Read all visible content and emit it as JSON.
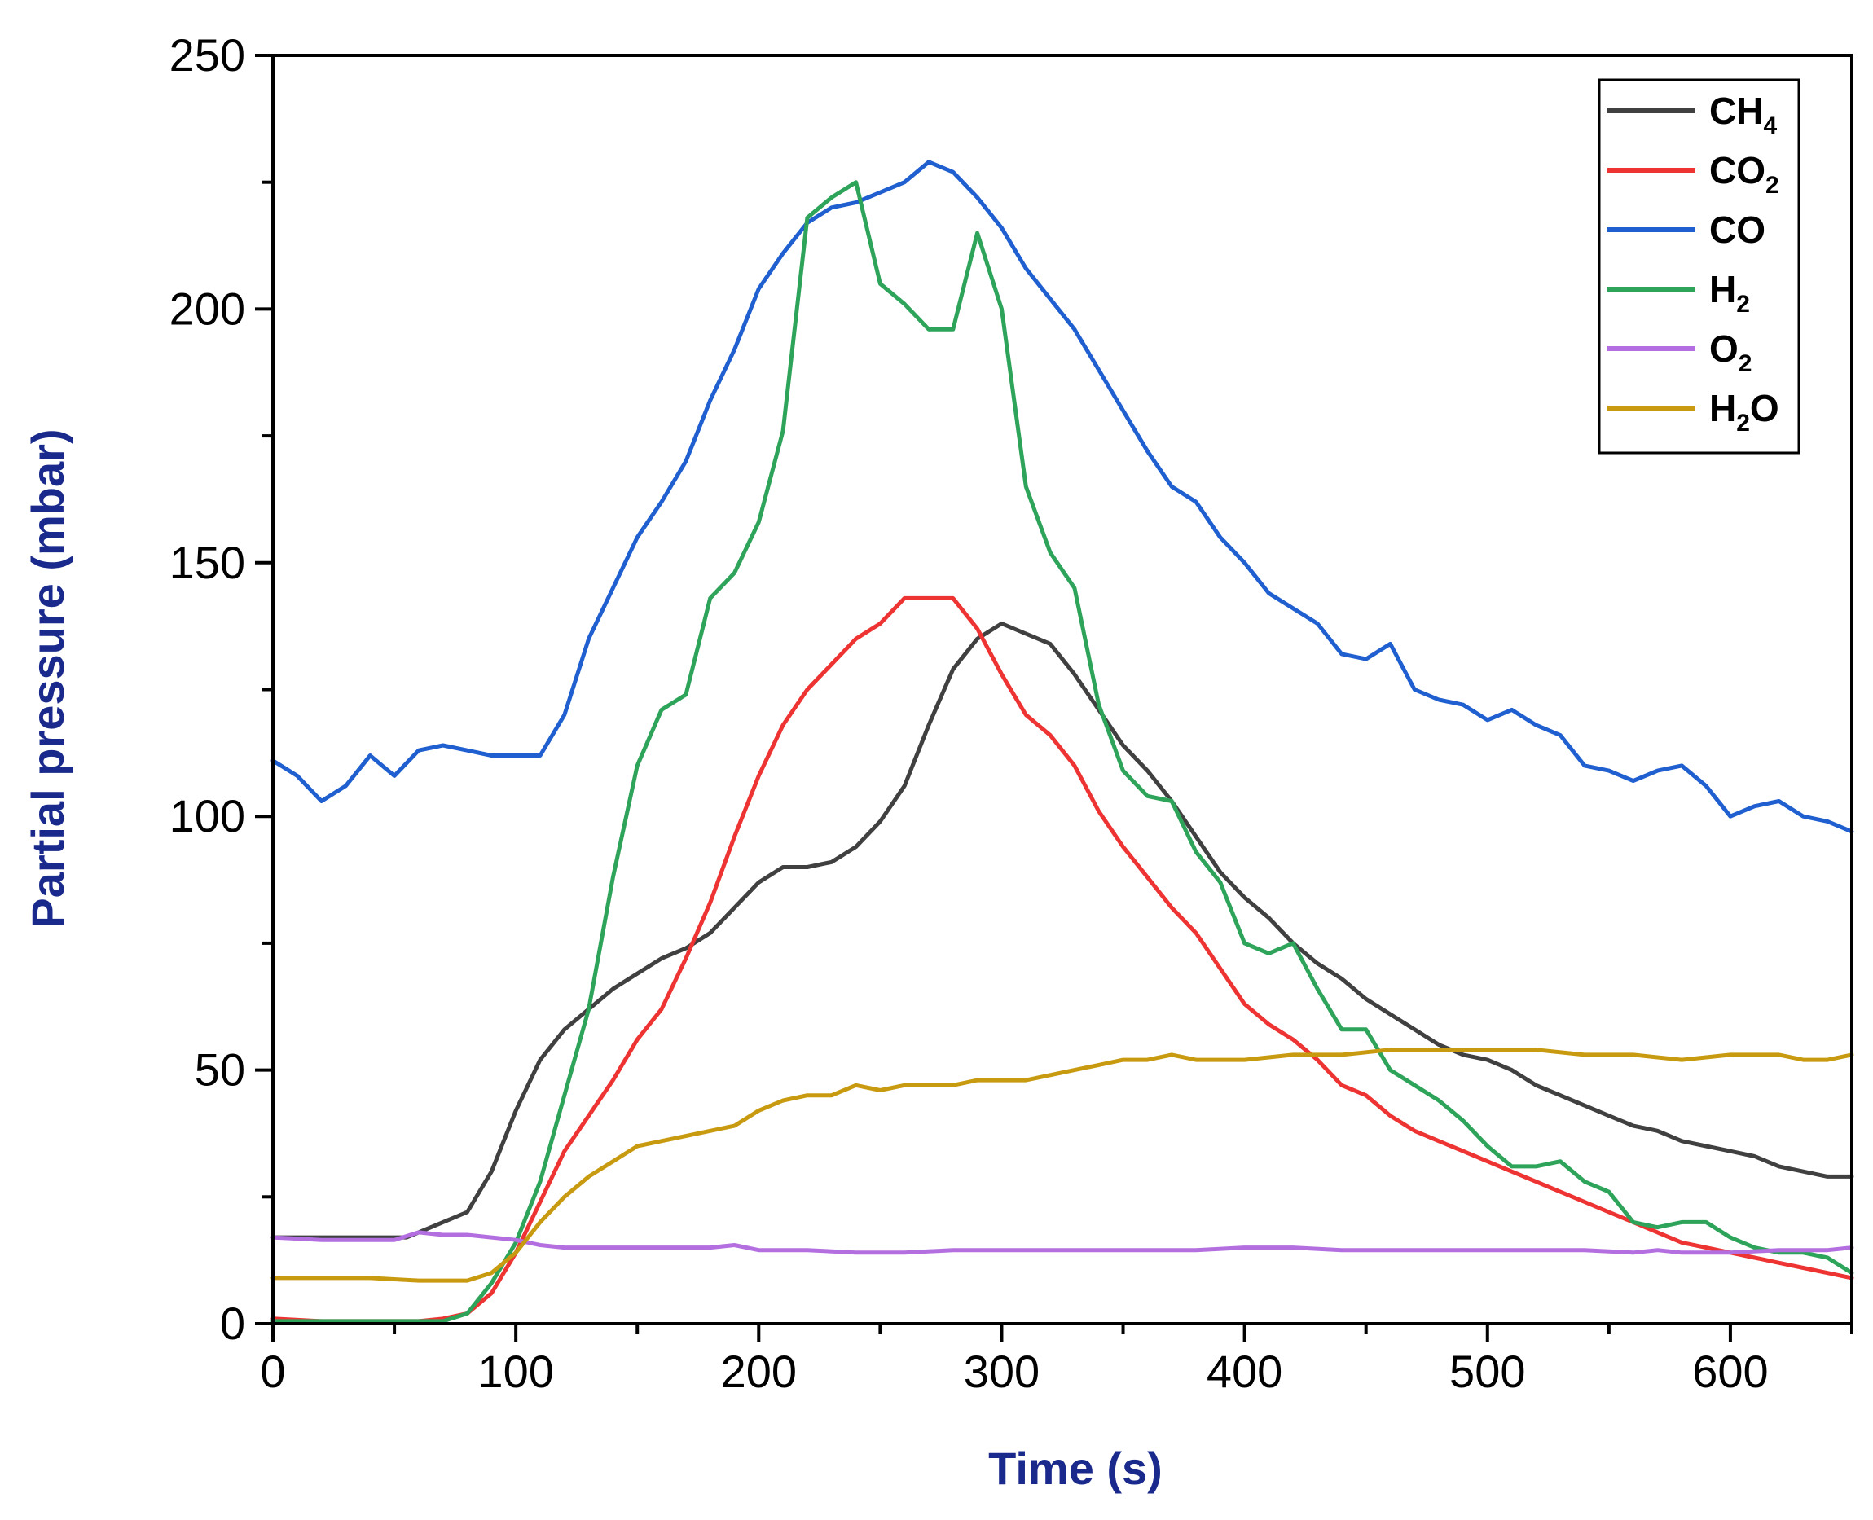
{
  "chart_data": {
    "type": "line",
    "title": "",
    "xlabel": "Time (s)",
    "ylabel": "Partial pressure (mbar)",
    "xlim": [
      0,
      650
    ],
    "ylim": [
      0,
      250
    ],
    "xticks": [
      0,
      100,
      200,
      300,
      400,
      500,
      600
    ],
    "yticks": [
      0,
      50,
      100,
      150,
      200,
      250
    ],
    "grid": false,
    "legend_position": "top-right",
    "series": [
      {
        "name": "CH4",
        "label_main": "CH",
        "label_sub": "4",
        "label_tail": "",
        "color": "#404040",
        "x": [
          0,
          20,
          40,
          55,
          65,
          80,
          90,
          100,
          110,
          120,
          130,
          140,
          150,
          160,
          170,
          180,
          190,
          200,
          210,
          220,
          230,
          240,
          250,
          260,
          270,
          280,
          290,
          300,
          310,
          320,
          330,
          340,
          350,
          360,
          370,
          380,
          390,
          400,
          410,
          420,
          430,
          440,
          450,
          460,
          470,
          480,
          490,
          500,
          510,
          520,
          530,
          540,
          550,
          560,
          570,
          580,
          590,
          600,
          610,
          620,
          630,
          640,
          650
        ],
        "y": [
          17,
          17,
          17,
          17,
          19,
          22,
          30,
          42,
          52,
          58,
          62,
          66,
          69,
          72,
          74,
          77,
          82,
          87,
          90,
          90,
          91,
          94,
          99,
          106,
          118,
          129,
          135,
          138,
          136,
          134,
          128,
          121,
          114,
          109,
          103,
          96,
          89,
          84,
          80,
          75,
          71,
          68,
          64,
          61,
          58,
          55,
          53,
          52,
          50,
          47,
          45,
          43,
          41,
          39,
          38,
          36,
          35,
          34,
          33,
          31,
          30,
          29,
          29
        ]
      },
      {
        "name": "CO2",
        "label_main": "CO",
        "label_sub": "2",
        "label_tail": "",
        "color": "#ee3333",
        "x": [
          0,
          20,
          40,
          60,
          70,
          80,
          90,
          100,
          110,
          120,
          130,
          140,
          150,
          160,
          170,
          180,
          190,
          200,
          210,
          220,
          230,
          240,
          250,
          260,
          270,
          280,
          290,
          300,
          310,
          320,
          330,
          340,
          350,
          360,
          370,
          380,
          390,
          400,
          410,
          420,
          430,
          440,
          450,
          460,
          470,
          480,
          490,
          500,
          510,
          520,
          530,
          540,
          550,
          560,
          570,
          580,
          590,
          600,
          610,
          620,
          630,
          640,
          650
        ],
        "y": [
          1,
          0.5,
          0.5,
          0.5,
          1,
          2,
          6,
          14,
          24,
          34,
          41,
          48,
          56,
          62,
          72,
          83,
          96,
          108,
          118,
          125,
          130,
          135,
          138,
          143,
          143,
          143,
          137,
          128,
          120,
          116,
          110,
          101,
          94,
          88,
          82,
          77,
          70,
          63,
          59,
          56,
          52,
          47,
          45,
          41,
          38,
          36,
          34,
          32,
          30,
          28,
          26,
          24,
          22,
          20,
          18,
          16,
          15,
          14,
          13,
          12,
          11,
          10,
          9
        ]
      },
      {
        "name": "CO",
        "label_main": "CO",
        "label_sub": "",
        "label_tail": "",
        "color": "#1f5fd0",
        "x": [
          0,
          10,
          20,
          30,
          40,
          50,
          60,
          70,
          80,
          90,
          100,
          110,
          120,
          130,
          140,
          150,
          160,
          170,
          180,
          190,
          200,
          210,
          220,
          230,
          240,
          250,
          260,
          270,
          280,
          290,
          300,
          310,
          320,
          330,
          340,
          350,
          360,
          370,
          380,
          390,
          400,
          410,
          420,
          430,
          440,
          450,
          460,
          470,
          480,
          490,
          500,
          510,
          520,
          530,
          540,
          550,
          560,
          570,
          580,
          590,
          600,
          610,
          620,
          630,
          640,
          650
        ],
        "y": [
          111,
          108,
          103,
          106,
          112,
          108,
          113,
          114,
          113,
          112,
          112,
          112,
          120,
          135,
          145,
          155,
          162,
          170,
          182,
          192,
          204,
          211,
          217,
          220,
          221,
          223,
          225,
          229,
          227,
          222,
          216,
          208,
          202,
          196,
          188,
          180,
          172,
          165,
          162,
          155,
          150,
          144,
          141,
          138,
          132,
          131,
          134,
          125,
          123,
          122,
          119,
          121,
          118,
          116,
          110,
          109,
          107,
          109,
          110,
          106,
          100,
          102,
          103,
          100,
          99,
          97
        ]
      },
      {
        "name": "H2",
        "label_main": "H",
        "label_sub": "2",
        "label_tail": "",
        "color": "#2ea35a",
        "x": [
          0,
          20,
          40,
          60,
          70,
          80,
          90,
          100,
          110,
          120,
          130,
          140,
          150,
          160,
          170,
          180,
          190,
          200,
          210,
          220,
          230,
          240,
          250,
          260,
          270,
          280,
          290,
          300,
          310,
          320,
          330,
          340,
          350,
          360,
          370,
          380,
          390,
          400,
          410,
          420,
          430,
          440,
          450,
          460,
          470,
          480,
          490,
          500,
          510,
          520,
          530,
          540,
          550,
          560,
          570,
          580,
          590,
          600,
          610,
          620,
          630,
          640,
          650
        ],
        "y": [
          0.5,
          0.5,
          0.5,
          0.5,
          0.5,
          2,
          8,
          16,
          28,
          45,
          62,
          88,
          110,
          121,
          124,
          143,
          148,
          158,
          176,
          218,
          222,
          225,
          205,
          201,
          196,
          196,
          215,
          200,
          165,
          152,
          145,
          122,
          109,
          104,
          103,
          93,
          87,
          75,
          73,
          75,
          66,
          58,
          58,
          50,
          47,
          44,
          40,
          35,
          31,
          31,
          32,
          28,
          26,
          20,
          19,
          20,
          20,
          17,
          15,
          14,
          14,
          13,
          10
        ]
      },
      {
        "name": "O2",
        "label_main": "O",
        "label_sub": "2",
        "label_tail": "",
        "color": "#b36ee0",
        "x": [
          0,
          20,
          40,
          50,
          60,
          70,
          80,
          90,
          100,
          110,
          120,
          140,
          160,
          180,
          190,
          200,
          220,
          240,
          260,
          280,
          300,
          320,
          340,
          360,
          380,
          400,
          420,
          440,
          460,
          480,
          500,
          520,
          540,
          560,
          570,
          580,
          600,
          620,
          640,
          650
        ],
        "y": [
          17,
          16.5,
          16.5,
          16.5,
          18,
          17.5,
          17.5,
          17,
          16.5,
          15.5,
          15,
          15,
          15,
          15,
          15.5,
          14.5,
          14.5,
          14,
          14,
          14.5,
          14.5,
          14.5,
          14.5,
          14.5,
          14.5,
          15,
          15,
          14.5,
          14.5,
          14.5,
          14.5,
          14.5,
          14.5,
          14,
          14.5,
          14,
          14,
          14.5,
          14.5,
          15
        ]
      },
      {
        "name": "H2O",
        "label_main": "H",
        "label_sub": "2",
        "label_tail": "O",
        "color": "#c89a10",
        "x": [
          0,
          20,
          40,
          60,
          80,
          90,
          100,
          110,
          120,
          130,
          140,
          150,
          160,
          170,
          180,
          190,
          200,
          210,
          220,
          230,
          240,
          250,
          260,
          270,
          280,
          290,
          300,
          310,
          320,
          330,
          340,
          350,
          360,
          370,
          380,
          390,
          400,
          420,
          440,
          460,
          480,
          500,
          520,
          540,
          560,
          580,
          600,
          620,
          630,
          640,
          650
        ],
        "y": [
          9,
          9,
          9,
          8.5,
          8.5,
          10,
          14,
          20,
          25,
          29,
          32,
          35,
          36,
          37,
          38,
          39,
          42,
          44,
          45,
          45,
          47,
          46,
          47,
          47,
          47,
          48,
          48,
          48,
          49,
          50,
          51,
          52,
          52,
          53,
          52,
          52,
          52,
          53,
          53,
          54,
          54,
          54,
          54,
          53,
          53,
          52,
          53,
          53,
          52,
          52,
          53
        ]
      }
    ]
  }
}
